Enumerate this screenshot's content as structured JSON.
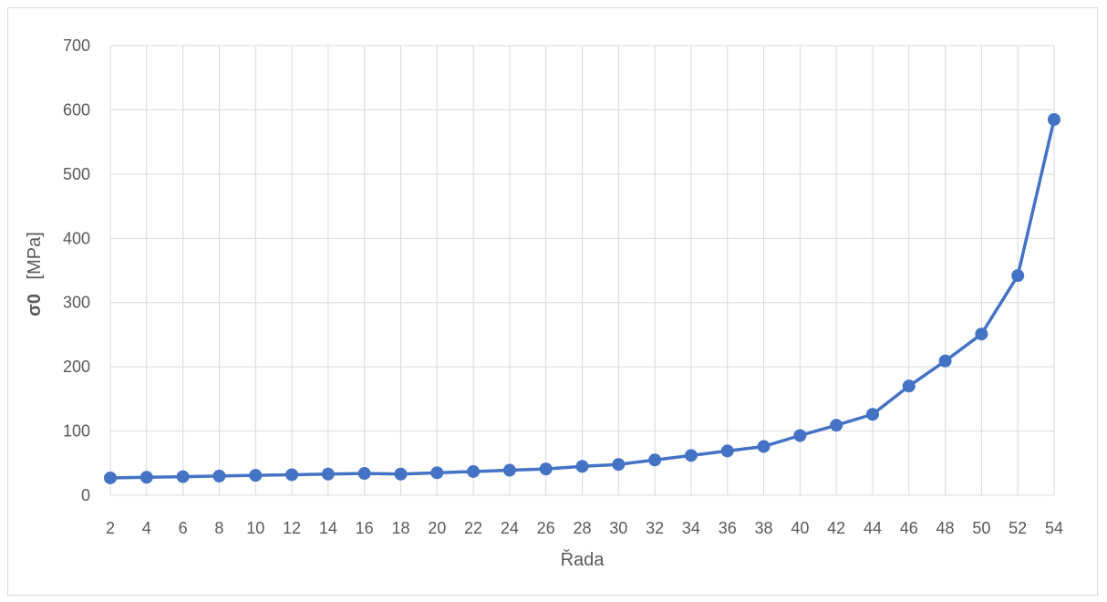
{
  "chart_data": {
    "type": "line",
    "title": "",
    "xlabel": "Řada",
    "ylabel_bold": "σ0",
    "ylabel_unit": "[MPa]",
    "categories": [
      "2",
      "4",
      "6",
      "8",
      "10",
      "12",
      "14",
      "16",
      "18",
      "20",
      "22",
      "24",
      "26",
      "28",
      "30",
      "32",
      "34",
      "36",
      "38",
      "40",
      "42",
      "44",
      "46",
      "48",
      "50",
      "52",
      "54"
    ],
    "series": [
      {
        "values": [
          27,
          28,
          29,
          30,
          31,
          32,
          33,
          34,
          33,
          35,
          37,
          39,
          41,
          45,
          48,
          55,
          62,
          69,
          76,
          93,
          109,
          126,
          170,
          209,
          251,
          342,
          585
        ]
      }
    ],
    "ylim": [
      0,
      700
    ],
    "yticks": [
      0,
      100,
      200,
      300,
      400,
      500,
      600,
      700
    ],
    "grid": true,
    "legend": "none",
    "colors": {
      "series": "#4472c4",
      "grid": "#d9d9d9",
      "text": "#595959",
      "border": "#d9d9d9"
    }
  }
}
